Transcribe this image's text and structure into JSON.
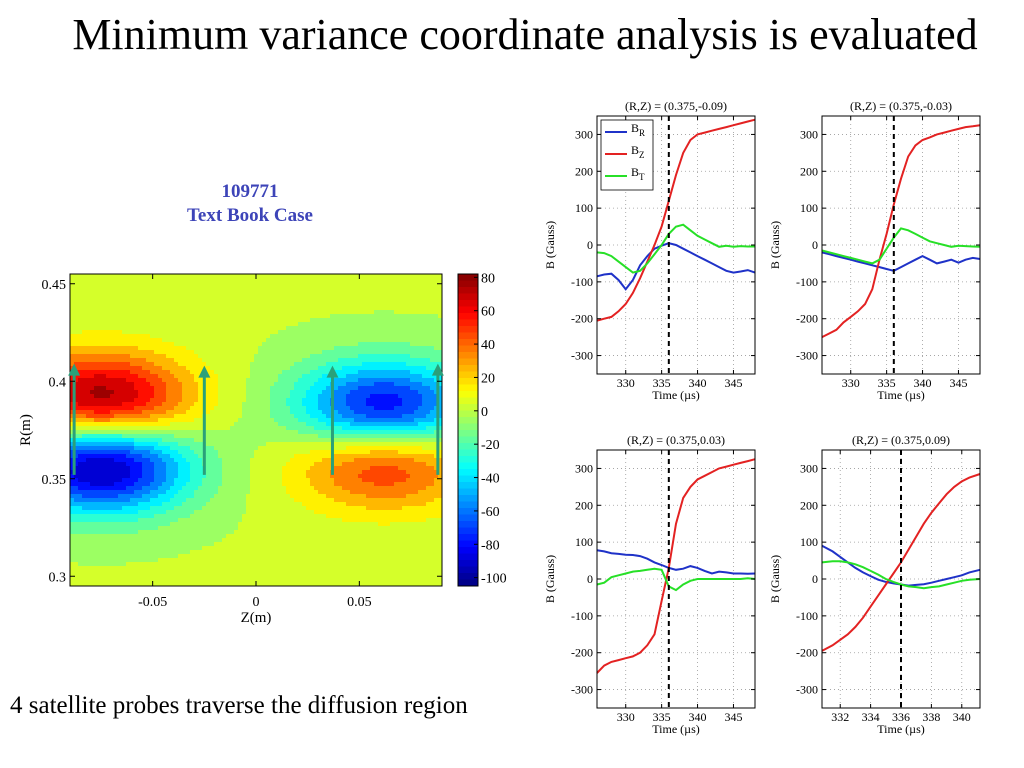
{
  "slide": {
    "title": "Minimum variance coordinate analysis is evaluated",
    "caption": "4 satellite probes traverse the diffusion region"
  },
  "contour": {
    "shot": "109771",
    "subtitle": "Text Book Case"
  },
  "chart_data": [
    {
      "type": "heatmap",
      "xlabel": "Z(m)",
      "ylabel": "R(m)",
      "xlim": [
        -0.09,
        0.09
      ],
      "ylim": [
        0.295,
        0.455
      ],
      "xticks": [
        -0.05,
        0,
        0.05
      ],
      "xtick_labels": [
        "-0.05",
        "0",
        "0.05"
      ],
      "yticks": [
        0.3,
        0.35,
        0.4,
        0.45
      ],
      "ytick_labels": [
        "0.3",
        "0.35",
        "0.4",
        "0.45"
      ],
      "colorbar": {
        "range": [
          -105,
          82
        ],
        "ticks": [
          80,
          60,
          40,
          20,
          0,
          -20,
          -40,
          -60,
          -80,
          -100
        ],
        "tick_labels": [
          "80",
          "60",
          "40",
          "20",
          "0",
          "-20",
          "-40",
          "-60",
          "-80",
          "-100"
        ]
      },
      "lobes": [
        {
          "z": -0.075,
          "r": 0.39,
          "value": 85
        },
        {
          "z": -0.075,
          "r": 0.357,
          "value": -105
        },
        {
          "z": 0.062,
          "r": 0.385,
          "value": -95
        },
        {
          "z": 0.062,
          "r": 0.36,
          "value": 65
        }
      ],
      "probe_paths": [
        {
          "z": -0.088,
          "r_start": 0.352,
          "r_end": 0.408
        },
        {
          "z": -0.025,
          "r_start": 0.352,
          "r_end": 0.407
        },
        {
          "z": 0.037,
          "r_start": 0.352,
          "r_end": 0.407
        },
        {
          "z": 0.088,
          "r_start": 0.352,
          "r_end": 0.408
        }
      ]
    },
    {
      "type": "line",
      "title": "(R,Z) = (0.375,-0.09)",
      "xlabel": "Time (µs)",
      "ylabel": "B (Gauss)",
      "xlim": [
        326,
        348
      ],
      "ylim": [
        -350,
        350
      ],
      "xticks": [
        330,
        335,
        340,
        345
      ],
      "xtick_labels": [
        "330",
        "335",
        "340",
        "345"
      ],
      "yticks": [
        300,
        200,
        100,
        0,
        -100,
        -200,
        -300
      ],
      "ytick_labels": [
        "300",
        "200",
        "100",
        "0",
        "-100",
        "-200",
        "-300"
      ],
      "vline": 336,
      "legend": {
        "entries": [
          {
            "base": "B",
            "sub": "R"
          },
          {
            "base": "B",
            "sub": "Z"
          },
          {
            "base": "B",
            "sub": "T"
          }
        ]
      },
      "series": [
        {
          "color": "#1f32c8",
          "x": [
            326,
            327,
            328,
            329,
            330,
            331,
            332,
            333,
            334,
            335,
            336,
            337,
            338,
            339,
            340,
            341,
            342,
            343,
            344,
            345,
            346,
            347,
            348
          ],
          "y": [
            -85,
            -80,
            -78,
            -95,
            -120,
            -95,
            -55,
            -30,
            -10,
            -2,
            5,
            0,
            -10,
            -20,
            -30,
            -40,
            -50,
            -60,
            -70,
            -75,
            -72,
            -68,
            -75
          ]
        },
        {
          "color": "#e32222",
          "x": [
            326,
            327,
            328,
            329,
            330,
            331,
            332,
            333,
            334,
            335,
            336,
            337,
            338,
            339,
            340,
            341,
            342,
            343,
            344,
            345,
            346,
            347,
            348
          ],
          "y": [
            -205,
            -200,
            -195,
            -180,
            -160,
            -130,
            -90,
            -45,
            0,
            50,
            120,
            190,
            250,
            285,
            300,
            305,
            310,
            315,
            320,
            325,
            330,
            335,
            340
          ]
        },
        {
          "color": "#27e027",
          "x": [
            326,
            327,
            328,
            329,
            330,
            331,
            332,
            333,
            334,
            335,
            336,
            337,
            338,
            339,
            340,
            341,
            342,
            343,
            344,
            345,
            346,
            347,
            348
          ],
          "y": [
            -20,
            -22,
            -30,
            -45,
            -60,
            -75,
            -70,
            -50,
            -25,
            0,
            30,
            50,
            55,
            40,
            25,
            15,
            5,
            -5,
            -2,
            -5,
            -3,
            -4,
            -4
          ]
        }
      ]
    },
    {
      "type": "line",
      "title": "(R,Z) = (0.375,-0.03)",
      "xlabel": "Time (µs)",
      "ylabel": "B (Gauss)",
      "xlim": [
        326,
        348
      ],
      "ylim": [
        -350,
        350
      ],
      "xticks": [
        330,
        335,
        340,
        345
      ],
      "xtick_labels": [
        "330",
        "335",
        "340",
        "345"
      ],
      "yticks": [
        300,
        200,
        100,
        0,
        -100,
        -200,
        -300
      ],
      "ytick_labels": [
        "300",
        "200",
        "100",
        "0",
        "-100",
        "-200",
        "-300"
      ],
      "vline": 336,
      "series": [
        {
          "color": "#1f32c8",
          "x": [
            326,
            327,
            328,
            329,
            330,
            331,
            332,
            333,
            334,
            335,
            336,
            337,
            338,
            339,
            340,
            341,
            342,
            343,
            344,
            345,
            346,
            347,
            348
          ],
          "y": [
            -20,
            -25,
            -30,
            -35,
            -40,
            -45,
            -50,
            -55,
            -60,
            -65,
            -70,
            -60,
            -50,
            -40,
            -30,
            -40,
            -50,
            -45,
            -40,
            -48,
            -40,
            -35,
            -38
          ]
        },
        {
          "color": "#e32222",
          "x": [
            326,
            327,
            328,
            329,
            330,
            331,
            332,
            333,
            334,
            335,
            336,
            337,
            338,
            339,
            340,
            341,
            342,
            343,
            344,
            345,
            346,
            347,
            348
          ],
          "y": [
            -250,
            -240,
            -230,
            -210,
            -195,
            -180,
            -160,
            -120,
            -40,
            30,
            110,
            180,
            240,
            270,
            285,
            292,
            300,
            305,
            310,
            315,
            320,
            322,
            325
          ]
        },
        {
          "color": "#27e027",
          "x": [
            326,
            327,
            328,
            329,
            330,
            331,
            332,
            333,
            334,
            335,
            336,
            337,
            338,
            339,
            340,
            341,
            342,
            343,
            344,
            345,
            346,
            347,
            348
          ],
          "y": [
            -15,
            -20,
            -25,
            -30,
            -35,
            -40,
            -45,
            -50,
            -40,
            -10,
            20,
            45,
            40,
            30,
            20,
            10,
            5,
            0,
            -5,
            -2,
            -3,
            -4,
            -5
          ]
        }
      ]
    },
    {
      "type": "line",
      "title": "(R,Z) = (0.375,0.03)",
      "xlabel": "Time (µs)",
      "ylabel": "B (Gauss)",
      "xlim": [
        326,
        348
      ],
      "ylim": [
        -350,
        350
      ],
      "xticks": [
        330,
        335,
        340,
        345
      ],
      "xtick_labels": [
        "330",
        "335",
        "340",
        "345"
      ],
      "yticks": [
        300,
        200,
        100,
        0,
        -100,
        -200,
        -300
      ],
      "ytick_labels": [
        "300",
        "200",
        "100",
        "0",
        "-100",
        "-200",
        "-300"
      ],
      "vline": 336,
      "series": [
        {
          "color": "#1f32c8",
          "x": [
            326,
            327,
            328,
            329,
            330,
            331,
            332,
            333,
            334,
            335,
            336,
            337,
            338,
            339,
            340,
            341,
            342,
            343,
            344,
            345,
            346,
            347,
            348
          ],
          "y": [
            78,
            75,
            70,
            68,
            66,
            65,
            62,
            55,
            45,
            38,
            30,
            25,
            28,
            35,
            30,
            22,
            15,
            20,
            18,
            15,
            15,
            14,
            15
          ]
        },
        {
          "color": "#e32222",
          "x": [
            326,
            327,
            328,
            329,
            330,
            331,
            332,
            333,
            334,
            335,
            336,
            337,
            338,
            339,
            340,
            341,
            342,
            343,
            344,
            345,
            346,
            347,
            348
          ],
          "y": [
            -255,
            -235,
            -225,
            -220,
            -215,
            -210,
            -200,
            -180,
            -150,
            -60,
            30,
            150,
            220,
            250,
            270,
            280,
            290,
            300,
            305,
            310,
            315,
            320,
            325
          ]
        },
        {
          "color": "#27e027",
          "x": [
            326,
            327,
            328,
            329,
            330,
            331,
            332,
            333,
            334,
            335,
            336,
            337,
            338,
            339,
            340,
            341,
            342,
            343,
            344,
            345,
            346,
            347,
            348
          ],
          "y": [
            -15,
            -10,
            5,
            10,
            15,
            20,
            22,
            25,
            28,
            25,
            -20,
            -30,
            -15,
            -5,
            0,
            0,
            0,
            0,
            0,
            0,
            0,
            2,
            0
          ]
        }
      ]
    },
    {
      "type": "line",
      "title": "(R,Z) = (0.375,0.09)",
      "xlabel": "Time (µs)",
      "ylabel": "B (Gauss)",
      "xlim": [
        330.8,
        341.2
      ],
      "ylim": [
        -350,
        350
      ],
      "xticks": [
        332,
        334,
        336,
        338,
        340
      ],
      "xtick_labels": [
        "332",
        "334",
        "336",
        "338",
        "340"
      ],
      "yticks": [
        300,
        200,
        100,
        0,
        -100,
        -200,
        -300
      ],
      "ytick_labels": [
        "300",
        "200",
        "100",
        "0",
        "-100",
        "-200",
        "-300"
      ],
      "vline": 336,
      "series": [
        {
          "color": "#1f32c8",
          "x": [
            330.8,
            331.5,
            332,
            332.5,
            333,
            333.5,
            334,
            334.5,
            335,
            335.5,
            336,
            336.5,
            337,
            337.5,
            338,
            338.5,
            339,
            339.5,
            340,
            340.5,
            341.2
          ],
          "y": [
            90,
            75,
            60,
            45,
            30,
            18,
            8,
            -2,
            -8,
            -12,
            -15,
            -18,
            -16,
            -14,
            -10,
            -5,
            0,
            5,
            10,
            18,
            25
          ]
        },
        {
          "color": "#e32222",
          "x": [
            330.8,
            331.5,
            332,
            332.5,
            333,
            333.5,
            334,
            334.5,
            335,
            335.5,
            336,
            336.5,
            337,
            337.5,
            338,
            338.5,
            339,
            339.5,
            340,
            340.5,
            341.2
          ],
          "y": [
            -195,
            -180,
            -165,
            -150,
            -130,
            -105,
            -75,
            -45,
            -15,
            15,
            45,
            80,
            115,
            150,
            180,
            205,
            230,
            250,
            265,
            275,
            285
          ]
        },
        {
          "color": "#27e027",
          "x": [
            330.8,
            331.5,
            332,
            332.5,
            333,
            333.5,
            334,
            334.5,
            335,
            335.5,
            336,
            336.5,
            337,
            337.5,
            338,
            338.5,
            339,
            339.5,
            340,
            340.5,
            341.2
          ],
          "y": [
            45,
            48,
            48,
            45,
            40,
            32,
            22,
            12,
            0,
            -8,
            -15,
            -20,
            -22,
            -25,
            -22,
            -20,
            -15,
            -10,
            -5,
            -2,
            0
          ]
        }
      ]
    }
  ]
}
